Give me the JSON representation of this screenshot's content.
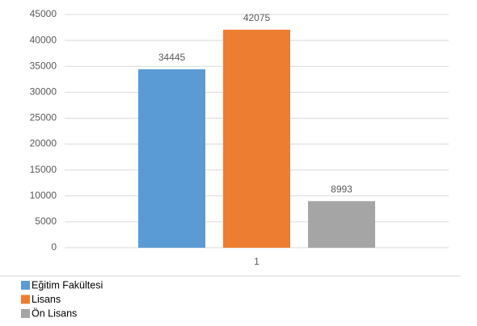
{
  "chart_data": {
    "type": "bar",
    "categories": [
      "1"
    ],
    "series": [
      {
        "name": "Eğitim Fakültesi",
        "color": "#5b9bd5",
        "values": [
          34445
        ]
      },
      {
        "name": "Lisans",
        "color": "#ed7d31",
        "values": [
          42075
        ]
      },
      {
        "name": "Ön Lisans",
        "color": "#a5a5a5",
        "values": [
          8993
        ]
      }
    ],
    "ylim": [
      0,
      45000
    ],
    "yticks": [
      0,
      5000,
      10000,
      15000,
      20000,
      25000,
      30000,
      35000,
      40000,
      45000
    ],
    "grid": true,
    "data_labels": true,
    "legend": "bottom-left"
  }
}
